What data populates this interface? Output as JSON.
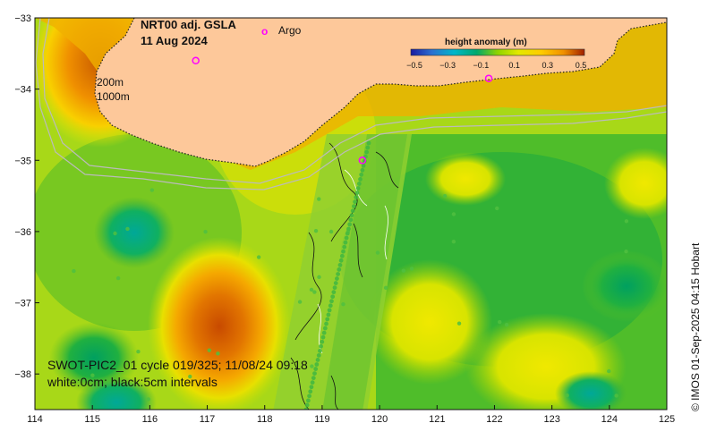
{
  "title": {
    "line1": "NRT00 adj. GSLA",
    "line2": "11 Aug 2024"
  },
  "legend": {
    "argo_marker": "o",
    "argo_label": "Argo",
    "argo_color": "#ff00ff"
  },
  "colorbar": {
    "title": "height anomaly (m)",
    "ticks": [
      "−0.5",
      "−0.3",
      "−0.1",
      "0.1",
      "0.3",
      "0.5"
    ],
    "colors": [
      "#1a1aa0",
      "#2b6fd0",
      "#00b7c9",
      "#00a86b",
      "#2eb82e",
      "#8fd400",
      "#e3e800",
      "#ffcc00",
      "#f09000",
      "#d05a00",
      "#a02000"
    ]
  },
  "isobaths": {
    "label_200": "200m",
    "label_1000": "1000m"
  },
  "swot_caption": {
    "line1": "SWOT-PIC2_01 cycle 019/325; 11/08/24 09:18",
    "line2": "white:0cm; black:5cm intervals"
  },
  "copyright": "© IMOS 01-Sep-2025 04:15 Hobart",
  "axes": {
    "x_ticks": [
      "114",
      "115",
      "116",
      "117",
      "118",
      "119",
      "120",
      "121",
      "122",
      "123",
      "124",
      "125"
    ],
    "y_ticks": [
      "−33",
      "−34",
      "−35",
      "−36",
      "−37",
      "−38"
    ],
    "lon_range": [
      114,
      125
    ],
    "lat_range": [
      -38.5,
      -33
    ]
  },
  "land_color": "#fdc89a",
  "argo_floats": [
    {
      "lon": 116.8,
      "lat": -33.6
    },
    {
      "lon": 119.7,
      "lat": -35.0
    },
    {
      "lon": 121.9,
      "lat": -33.85
    }
  ]
}
